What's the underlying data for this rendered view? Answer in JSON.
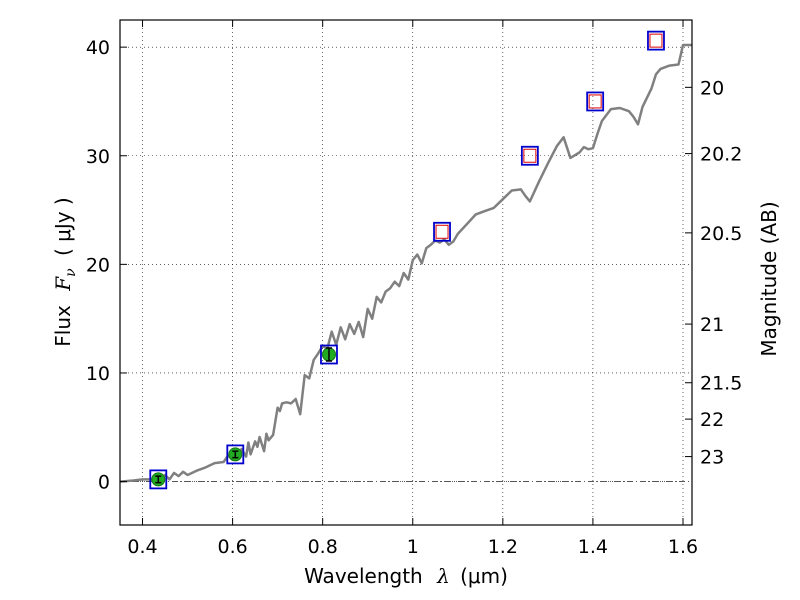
{
  "chart_data": {
    "type": "scatter",
    "xlabel_prefix": "Wavelength",
    "xlabel_symbol": "λ",
    "xlabel_unit": "(μm)",
    "ylabel_prefix": "Flux",
    "ylabel_symbol": "F",
    "ylabel_subscript": "ν",
    "ylabel_unit": "( μJy )",
    "ylabel_right": "Magnitude (AB)",
    "xlim": [
      0.35,
      1.62
    ],
    "ylim": [
      -4,
      42.5
    ],
    "grid": true,
    "x_ticks": [
      0.4,
      0.6,
      0.8,
      1.0,
      1.2,
      1.4,
      1.6
    ],
    "x_tick_labels": [
      "0.4",
      "0.6",
      "0.8",
      "1",
      "1.2",
      "1.4",
      "1.6"
    ],
    "y_ticks": [
      0,
      10,
      20,
      30,
      40
    ],
    "y_tick_labels": [
      "0",
      "10",
      "20",
      "30",
      "40"
    ],
    "right_axis": {
      "ticks": [
        {
          "label": "20",
          "flux": 36.3
        },
        {
          "label": "20.2",
          "flux": 30.2
        },
        {
          "label": "20.5",
          "flux": 22.9
        },
        {
          "label": "21",
          "flux": 14.5
        },
        {
          "label": "21.5",
          "flux": 9.1
        },
        {
          "label": "22",
          "flux": 5.75
        },
        {
          "label": "23",
          "flux": 2.3
        }
      ]
    },
    "series": [
      {
        "name": "model-spectrum",
        "color": "#808080",
        "x": [
          0.35,
          0.38,
          0.4,
          0.42,
          0.43,
          0.44,
          0.45,
          0.46,
          0.47,
          0.48,
          0.49,
          0.5,
          0.52,
          0.54,
          0.56,
          0.58,
          0.59,
          0.6,
          0.61,
          0.62,
          0.63,
          0.635,
          0.64,
          0.65,
          0.655,
          0.66,
          0.67,
          0.675,
          0.68,
          0.69,
          0.7,
          0.705,
          0.71,
          0.72,
          0.73,
          0.74,
          0.75,
          0.76,
          0.77,
          0.78,
          0.79,
          0.8,
          0.81,
          0.82,
          0.83,
          0.84,
          0.85,
          0.86,
          0.87,
          0.88,
          0.89,
          0.9,
          0.91,
          0.92,
          0.93,
          0.94,
          0.95,
          0.96,
          0.97,
          0.98,
          0.99,
          1.0,
          1.01,
          1.02,
          1.03,
          1.04,
          1.05,
          1.06,
          1.07,
          1.08,
          1.09,
          1.1,
          1.12,
          1.14,
          1.16,
          1.18,
          1.2,
          1.22,
          1.24,
          1.25,
          1.26,
          1.28,
          1.3,
          1.32,
          1.335,
          1.35,
          1.37,
          1.38,
          1.39,
          1.4,
          1.41,
          1.42,
          1.44,
          1.46,
          1.48,
          1.49,
          1.5,
          1.51,
          1.53,
          1.54,
          1.55,
          1.57,
          1.59,
          1.6,
          1.62
        ],
        "y": [
          0.0,
          0.1,
          0.2,
          0.2,
          0.3,
          0.2,
          0.6,
          0.2,
          0.8,
          0.5,
          0.9,
          0.6,
          1.0,
          1.3,
          1.7,
          1.8,
          2.4,
          2.0,
          2.4,
          3.0,
          2.3,
          3.6,
          2.5,
          3.7,
          3.2,
          4.1,
          2.8,
          4.4,
          3.8,
          4.3,
          6.8,
          6.5,
          7.2,
          7.3,
          7.2,
          7.6,
          6.2,
          9.8,
          9.5,
          11.2,
          11.8,
          12.5,
          12.2,
          13.8,
          12.6,
          14.2,
          13.1,
          14.5,
          13.6,
          14.7,
          13.3,
          15.9,
          15.0,
          17.0,
          16.5,
          17.5,
          17.8,
          18.4,
          18.0,
          19.2,
          18.6,
          20.4,
          20.9,
          20.1,
          21.5,
          21.8,
          22.2,
          22.0,
          22.3,
          21.8,
          22.1,
          22.8,
          23.7,
          24.6,
          24.9,
          25.2,
          26.0,
          26.8,
          26.9,
          26.3,
          25.8,
          27.6,
          29.3,
          30.9,
          31.7,
          29.8,
          30.3,
          30.8,
          30.6,
          30.7,
          32.0,
          33.2,
          34.3,
          34.4,
          34.1,
          33.6,
          32.9,
          34.5,
          36.2,
          37.5,
          38.0,
          38.3,
          38.4,
          40.2,
          40.2
        ]
      },
      {
        "name": "model-photometry",
        "marker": "square",
        "edge_color": "#0000cc",
        "x": [
          0.435,
          0.606,
          0.814,
          1.065,
          1.26,
          1.405,
          1.54
        ],
        "y": [
          0.2,
          2.5,
          11.7,
          23.0,
          30.0,
          35.0,
          40.6
        ]
      },
      {
        "name": "observed-flux",
        "marker": "circle",
        "color": "#22aa22",
        "x": [
          0.435,
          0.606,
          0.814
        ],
        "y": [
          0.2,
          2.5,
          11.7
        ],
        "yerr": [
          0.3,
          0.3,
          0.6
        ]
      },
      {
        "name": "upper-limits",
        "marker": "square",
        "edge_color": "#dd0000",
        "x": [
          1.065,
          1.26,
          1.405,
          1.54
        ],
        "y": [
          23.0,
          30.0,
          35.0,
          40.6
        ]
      }
    ]
  }
}
